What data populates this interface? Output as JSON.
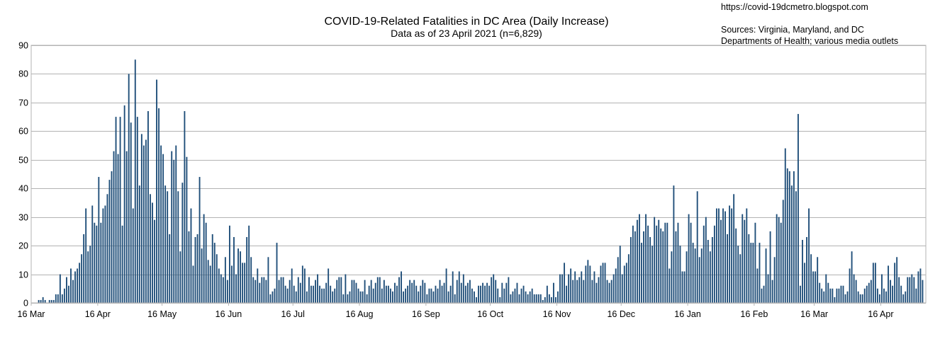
{
  "header": {
    "title": "COVID-19-Related Fatalities in DC Area (Daily Increase)",
    "subtitle": "Data as of 23 April 2021 (n=6,829)",
    "url": "https://covid-19dcmetro.blogspot.com",
    "sources_line1": "Sources: Virginia, Maryland, and DC",
    "sources_line2": "Departments of Health; various media outlets"
  },
  "colors": {
    "bar": "#1f4e79",
    "grid": "#b3b3b3"
  },
  "chart_data": {
    "type": "bar",
    "title": "COVID-19-Related Fatalities in DC Area (Daily Increase)",
    "subtitle": "Data as of 23 April 2021 (n=6,829)",
    "xlabel": "",
    "ylabel": "",
    "ylim": [
      0,
      90
    ],
    "y_ticks": [
      0,
      10,
      20,
      30,
      40,
      50,
      60,
      70,
      80,
      90
    ],
    "grid": true,
    "start_date": "2020-03-16",
    "x_tick_labels": [
      "16 Mar",
      "16 Apr",
      "16 May",
      "16 Jun",
      "16 Jul",
      "16 Aug",
      "16 Sep",
      "16 Oct",
      "16 Nov",
      "16 Dec",
      "16 Jan",
      "16 Feb",
      "16 Mar",
      "16 Apr"
    ],
    "x_tick_day_index": [
      0,
      31,
      61,
      92,
      122,
      153,
      184,
      214,
      245,
      275,
      306,
      337,
      365,
      396
    ],
    "values": [
      0,
      0,
      0,
      1,
      1,
      2,
      1,
      0,
      1,
      1,
      1,
      3,
      3,
      10,
      3,
      5,
      9,
      6,
      12,
      8,
      11,
      12,
      14,
      17,
      24,
      33,
      18,
      20,
      34,
      28,
      27,
      44,
      28,
      33,
      34,
      38,
      43,
      46,
      53,
      65,
      52,
      65,
      27,
      69,
      53,
      80,
      63,
      33,
      85,
      65,
      41,
      59,
      55,
      57,
      67,
      38,
      35,
      29,
      78,
      68,
      55,
      52,
      41,
      39,
      24,
      53,
      50,
      55,
      39,
      18,
      42,
      67,
      51,
      25,
      33,
      13,
      23,
      24,
      44,
      19,
      31,
      28,
      15,
      13,
      24,
      21,
      17,
      12,
      10,
      9,
      16,
      8,
      27,
      13,
      23,
      10,
      19,
      18,
      14,
      14,
      23,
      27,
      16,
      9,
      8,
      12,
      7,
      9,
      9,
      8,
      16,
      3,
      4,
      5,
      21,
      8,
      9,
      9,
      6,
      5,
      8,
      12,
      6,
      4,
      9,
      7,
      13,
      12,
      4,
      9,
      6,
      6,
      8,
      10,
      6,
      5,
      5,
      7,
      12,
      6,
      4,
      5,
      8,
      9,
      9,
      3,
      10,
      3,
      4,
      8,
      8,
      7,
      5,
      4,
      4,
      8,
      3,
      6,
      8,
      5,
      7,
      9,
      9,
      5,
      8,
      6,
      6,
      5,
      4,
      7,
      6,
      9,
      11,
      4,
      5,
      6,
      8,
      7,
      8,
      6,
      4,
      6,
      8,
      7,
      3,
      5,
      5,
      4,
      6,
      5,
      8,
      6,
      7,
      12,
      4,
      6,
      11,
      3,
      8,
      11,
      7,
      10,
      6,
      7,
      8,
      5,
      4,
      2,
      6,
      6,
      7,
      6,
      7,
      6,
      9,
      10,
      8,
      5,
      2,
      7,
      5,
      7,
      9,
      3,
      4,
      5,
      7,
      3,
      5,
      6,
      4,
      3,
      4,
      5,
      3,
      3,
      3,
      3,
      1,
      2,
      6,
      3,
      2,
      7,
      2,
      4,
      10,
      10,
      14,
      6,
      10,
      12,
      8,
      11,
      8,
      9,
      11,
      8,
      13,
      15,
      13,
      8,
      11,
      7,
      9,
      13,
      14,
      14,
      8,
      7,
      8,
      10,
      12,
      16,
      20,
      10,
      13,
      14,
      17,
      23,
      27,
      25,
      29,
      31,
      21,
      25,
      31,
      27,
      23,
      20,
      30,
      27,
      29,
      26,
      25,
      28,
      28,
      12,
      18,
      41,
      25,
      28,
      20,
      11,
      11,
      18,
      31,
      28,
      21,
      19,
      39,
      16,
      19,
      27,
      30,
      22,
      18,
      23,
      27,
      33,
      33,
      29,
      33,
      32,
      24,
      34,
      33,
      38,
      26,
      20,
      17,
      31,
      29,
      33,
      24,
      21,
      21,
      28,
      12,
      21,
      5,
      6,
      19,
      10,
      25,
      8,
      16,
      31,
      30,
      28,
      36,
      54,
      47,
      46,
      41,
      46,
      39,
      66,
      6,
      22,
      14,
      23,
      33,
      17,
      11,
      11,
      16,
      7,
      5,
      4,
      10,
      7,
      5,
      5,
      2,
      5,
      5,
      6,
      6,
      3,
      4,
      12,
      18,
      10,
      8,
      4,
      3,
      3,
      5,
      6,
      7,
      8,
      14,
      14,
      5,
      3,
      10,
      5,
      4,
      13,
      8,
      6,
      14,
      16,
      9,
      6,
      3,
      4,
      9,
      9,
      10,
      9,
      5,
      11,
      12,
      8
    ]
  }
}
